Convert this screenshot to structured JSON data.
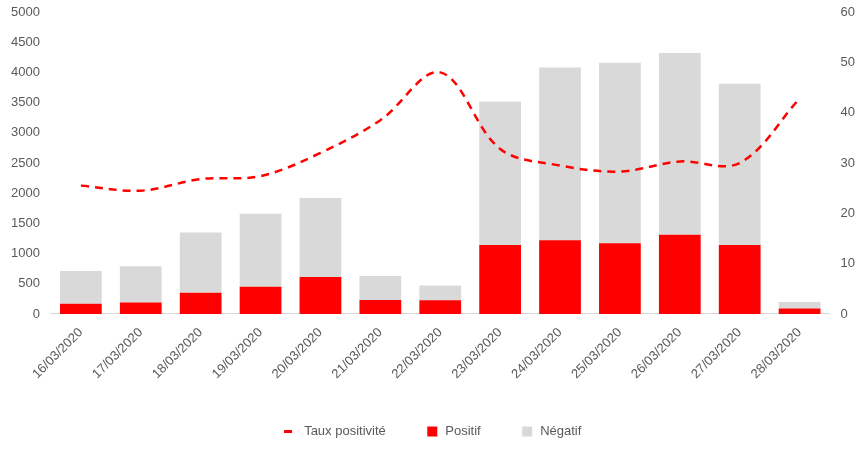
{
  "chart_data": {
    "type": "bar",
    "stacked": true,
    "grid": false,
    "legend": "bottom",
    "categories": [
      "16/03/2020",
      "17/03/2020",
      "18/03/2020",
      "19/03/2020",
      "20/03/2020",
      "21/03/2020",
      "22/03/2020",
      "23/03/2020",
      "24/03/2020",
      "25/03/2020",
      "26/03/2020",
      "27/03/2020",
      "28/03/2020"
    ],
    "series": [
      {
        "name": "Positif",
        "type": "bar",
        "color": "#ff0000",
        "values": [
          170,
          190,
          350,
          450,
          610,
          230,
          225,
          1140,
          1220,
          1170,
          1310,
          1140,
          90
        ]
      },
      {
        "name": "Négatif",
        "type": "bar",
        "color": "#d9d9d9",
        "values": [
          540,
          600,
          1000,
          1210,
          1310,
          400,
          245,
          2380,
          2860,
          2990,
          3010,
          2670,
          110
        ]
      },
      {
        "name": "Taux positivité",
        "type": "line",
        "color": "#ff0000",
        "line_style": "dashed",
        "marker": "none",
        "axis": "y2",
        "values": [
          25.5,
          24.5,
          26.8,
          27.4,
          32,
          38.5,
          48,
          32.8,
          29.5,
          28.3,
          30.3,
          30,
          42.8
        ]
      }
    ],
    "ylim": [
      0,
      5000
    ],
    "yticks": [
      0,
      500,
      1000,
      1500,
      2000,
      2500,
      3000,
      3500,
      4000,
      4500,
      5000
    ],
    "y2lim": [
      0,
      60
    ],
    "y2ticks": [
      0,
      10,
      20,
      30,
      40,
      50,
      60
    ]
  }
}
